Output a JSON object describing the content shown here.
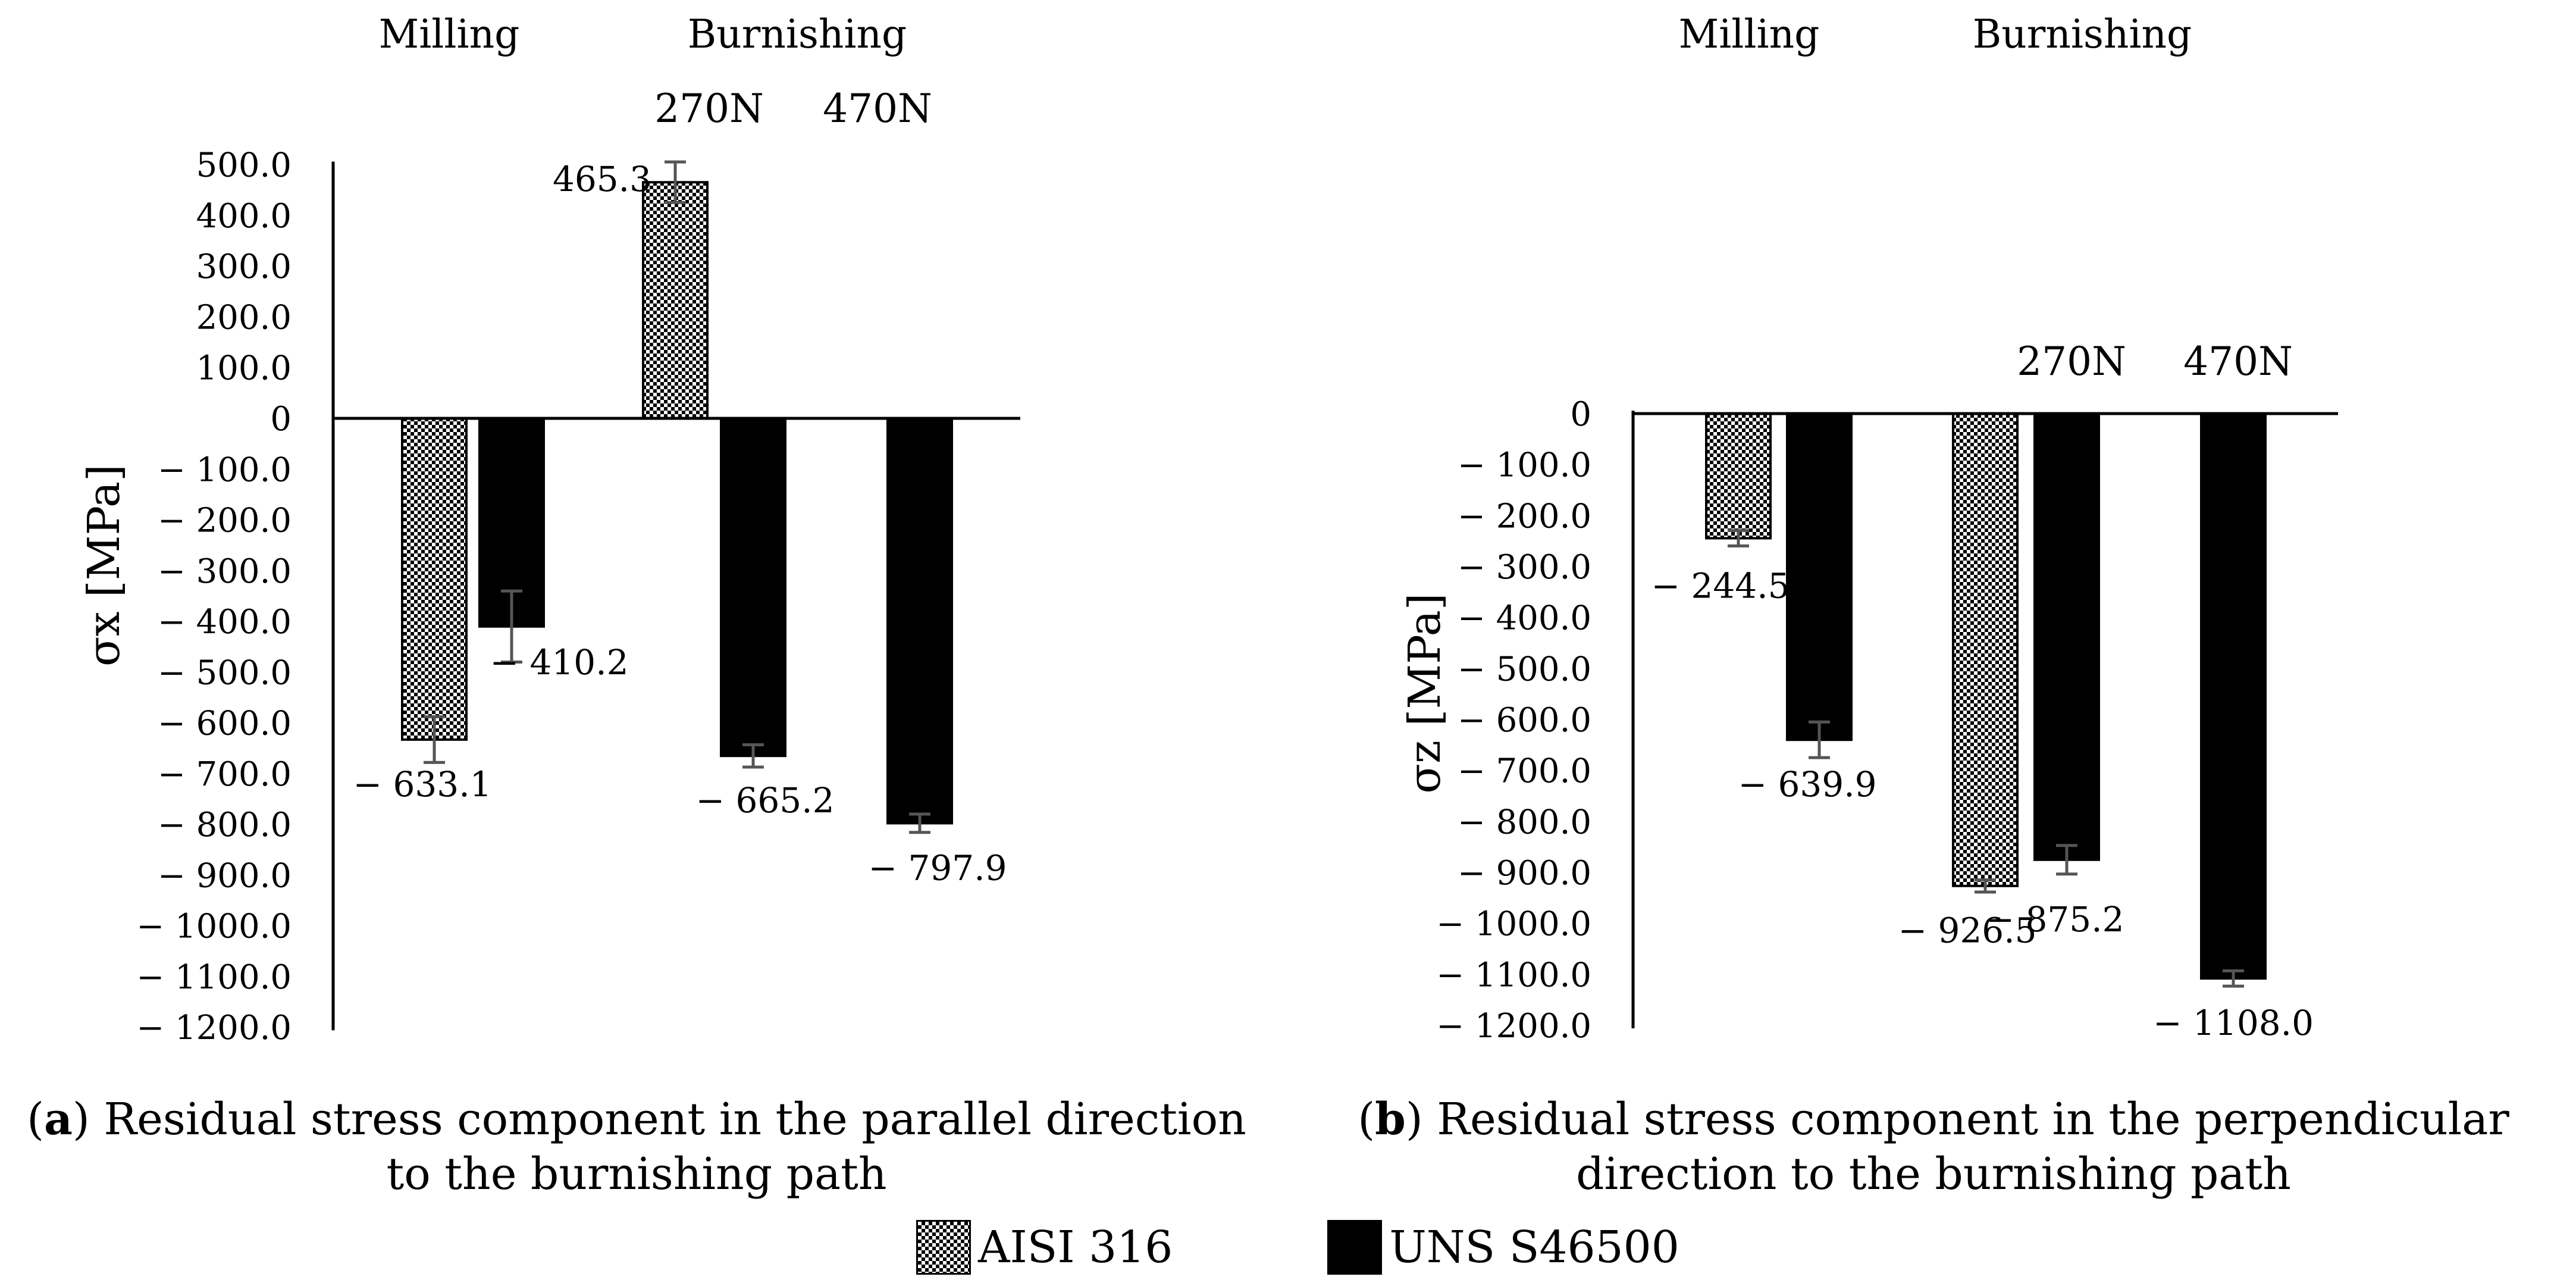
{
  "chart_data": [
    {
      "type": "bar",
      "panel": "a",
      "ylabel": "σx [MPa]",
      "ylim": [
        -1200,
        500
      ],
      "yticks": [
        500,
        400,
        300,
        200,
        100,
        0,
        -100,
        -200,
        -300,
        -400,
        -500,
        -600,
        -700,
        -800,
        -900,
        -1000,
        -1100,
        -1200
      ],
      "ytick_labels": [
        "500.0",
        "400.0",
        "300.0",
        "200.0",
        "100.0",
        "0",
        "− 100.0",
        "− 200.0",
        "− 300.0",
        "− 400.0",
        "− 500.0",
        "− 600.0",
        "− 700.0",
        "− 800.0",
        "− 900.0",
        "− 1000.0",
        "− 1100.0",
        "− 1200.0"
      ],
      "group_header_labels": [
        "Milling",
        "Burnishing"
      ],
      "categories": [
        "Milling",
        "270N",
        "470N"
      ],
      "category_labels_shown": [
        "",
        "270N",
        "470N"
      ],
      "series": [
        {
          "name": "AISI 316",
          "values": [
            -633.1,
            465.3,
            null
          ],
          "errors": [
            45,
            40,
            null
          ],
          "labels": [
            "− 633.1",
            "465.3",
            ""
          ]
        },
        {
          "name": "UNS S46500",
          "values": [
            -410.2,
            -665.2,
            -797.9
          ],
          "errors": [
            70,
            22,
            18
          ],
          "labels": [
            "− 410.2",
            "− 665.2",
            "− 797.9"
          ]
        }
      ],
      "caption_bold": "a",
      "caption_text": "Residual stress component in the parallel direction to the burnishing path"
    },
    {
      "type": "bar",
      "panel": "b",
      "ylabel": "σz [MPa]",
      "ylim": [
        -1200,
        0
      ],
      "yticks": [
        0,
        -100,
        -200,
        -300,
        -400,
        -500,
        -600,
        -700,
        -800,
        -900,
        -1000,
        -1100,
        -1200
      ],
      "ytick_labels": [
        "0",
        "− 100.0",
        "− 200.0",
        "− 300.0",
        "− 400.0",
        "− 500.0",
        "− 600.0",
        "− 700.0",
        "− 800.0",
        "− 900.0",
        "− 1000.0",
        "− 1100.0",
        "− 1200.0"
      ],
      "group_header_labels": [
        "Milling",
        "Burnishing"
      ],
      "categories": [
        "Milling",
        "270N",
        "470N"
      ],
      "category_labels_shown": [
        "",
        "270N",
        "470N"
      ],
      "series": [
        {
          "name": "AISI 316",
          "values": [
            -244.5,
            -926.5,
            null
          ],
          "errors": [
            15,
            12,
            null
          ],
          "labels": [
            "− 244.5",
            "− 926.5",
            ""
          ]
        },
        {
          "name": "UNS S46500",
          "values": [
            -639.9,
            -875.2,
            -1108.0
          ],
          "errors": [
            35,
            28,
            15
          ],
          "labels": [
            "− 639.9",
            "− 875.2",
            "− 1108.0"
          ]
        }
      ],
      "caption_bold": "b",
      "caption_text": "Residual stress component in the perpendicular direction to the burnishing path"
    }
  ],
  "legend": [
    {
      "name": "AISI 316",
      "pattern": "checker"
    },
    {
      "name": "UNS S46500",
      "pattern": "solid"
    }
  ],
  "colors": {
    "bar_solid": "#000000",
    "error_bar": "#555555",
    "axis": "#000000"
  }
}
